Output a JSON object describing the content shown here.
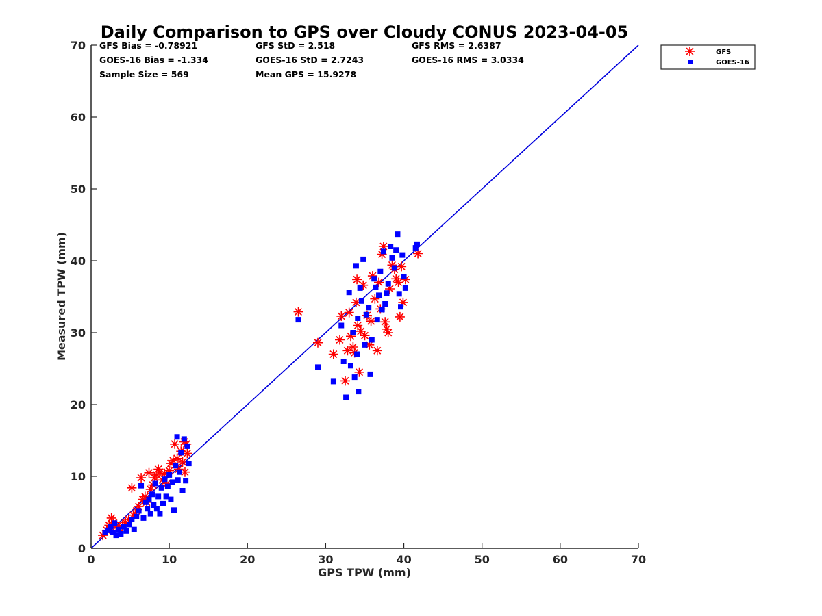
{
  "chart_data": {
    "type": "scatter",
    "title": "Daily Comparison to GPS over Cloudy CONUS 2023-04-05",
    "xlabel": "GPS TPW (mm)",
    "ylabel": "Measured TPW (mm)",
    "xlim": [
      0,
      70
    ],
    "ylim": [
      0,
      70
    ],
    "xticks": [
      0,
      10,
      20,
      30,
      40,
      50,
      60,
      70
    ],
    "yticks": [
      0,
      10,
      20,
      30,
      40,
      50,
      60,
      70
    ],
    "grid": false,
    "legend_position": "outside-top-right",
    "stats": [
      "GFS Bias = -0.78921",
      "GFS StD = 2.518",
      "GFS RMS = 2.6387",
      "GOES-16 Bias = -1.334",
      "GOES-16 StD = 2.7243",
      "GOES-16 RMS = 3.0334",
      "Sample Size = 569",
      "Mean GPS = 15.9278"
    ],
    "reference_line": {
      "x": [
        0,
        70
      ],
      "y": [
        0,
        70
      ],
      "color": "#0000dd"
    },
    "series": [
      {
        "name": "GFS",
        "marker": "asterisk",
        "color": "#ff0000",
        "points": [
          [
            1.5,
            1.8
          ],
          [
            2.0,
            2.5
          ],
          [
            2.3,
            3.2
          ],
          [
            2.6,
            4.2
          ],
          [
            2.9,
            3.6
          ],
          [
            3.2,
            3.0
          ],
          [
            3.6,
            2.8
          ],
          [
            4.0,
            3.2
          ],
          [
            4.4,
            3.6
          ],
          [
            4.8,
            4.0
          ],
          [
            5.2,
            8.4
          ],
          [
            5.4,
            4.6
          ],
          [
            5.8,
            5.2
          ],
          [
            6.1,
            5.8
          ],
          [
            6.4,
            9.8
          ],
          [
            6.6,
            6.8
          ],
          [
            6.9,
            7.2
          ],
          [
            7.1,
            6.4
          ],
          [
            7.4,
            10.5
          ],
          [
            7.6,
            8.2
          ],
          [
            7.9,
            8.8
          ],
          [
            8.1,
            9.8
          ],
          [
            8.4,
            10.2
          ],
          [
            8.6,
            11.0
          ],
          [
            8.8,
            10.6
          ],
          [
            9.1,
            9.5
          ],
          [
            9.4,
            10.4
          ],
          [
            9.7,
            9.0
          ],
          [
            10.0,
            10.8
          ],
          [
            10.2,
            11.8
          ],
          [
            10.5,
            12.2
          ],
          [
            10.7,
            14.5
          ],
          [
            11.0,
            12.5
          ],
          [
            11.2,
            11.0
          ],
          [
            11.5,
            13.5
          ],
          [
            11.7,
            12.0
          ],
          [
            11.9,
            14.8
          ],
          [
            12.0,
            10.6
          ],
          [
            12.2,
            14.5
          ],
          [
            12.3,
            13.2
          ],
          [
            26.5,
            32.9
          ],
          [
            29.0,
            28.6
          ],
          [
            31.0,
            27.0
          ],
          [
            31.8,
            29.0
          ],
          [
            32.0,
            32.3
          ],
          [
            32.5,
            23.3
          ],
          [
            32.8,
            27.5
          ],
          [
            33.0,
            32.8
          ],
          [
            33.2,
            29.5
          ],
          [
            33.5,
            28.0
          ],
          [
            33.7,
            27.2
          ],
          [
            33.9,
            34.2
          ],
          [
            34.0,
            37.4
          ],
          [
            34.1,
            31.0
          ],
          [
            34.3,
            24.5
          ],
          [
            34.5,
            30.2
          ],
          [
            34.8,
            36.6
          ],
          [
            35.0,
            29.6
          ],
          [
            35.3,
            32.4
          ],
          [
            35.6,
            28.3
          ],
          [
            35.8,
            31.6
          ],
          [
            36.0,
            37.9
          ],
          [
            36.3,
            34.7
          ],
          [
            36.6,
            27.5
          ],
          [
            36.8,
            37.0
          ],
          [
            37.0,
            33.3
          ],
          [
            37.2,
            40.9
          ],
          [
            37.4,
            42.0
          ],
          [
            37.6,
            31.5
          ],
          [
            37.8,
            30.5
          ],
          [
            38.0,
            30.0
          ],
          [
            38.2,
            36.1
          ],
          [
            38.5,
            39.4
          ],
          [
            38.8,
            38.8
          ],
          [
            39.0,
            37.5
          ],
          [
            39.3,
            37.0
          ],
          [
            39.5,
            32.2
          ],
          [
            39.7,
            39.2
          ],
          [
            39.9,
            34.2
          ],
          [
            40.2,
            37.4
          ],
          [
            41.8,
            41.0
          ]
        ]
      },
      {
        "name": "GOES-16",
        "marker": "square",
        "color": "#0000ff",
        "points": [
          [
            1.8,
            2.2
          ],
          [
            2.2,
            2.5
          ],
          [
            2.5,
            3.0
          ],
          [
            2.8,
            2.2
          ],
          [
            3.0,
            3.5
          ],
          [
            3.2,
            1.8
          ],
          [
            3.5,
            2.6
          ],
          [
            3.8,
            2.0
          ],
          [
            4.2,
            3.0
          ],
          [
            4.5,
            2.4
          ],
          [
            4.9,
            3.3
          ],
          [
            5.2,
            4.0
          ],
          [
            5.5,
            2.6
          ],
          [
            5.8,
            4.4
          ],
          [
            6.1,
            5.2
          ],
          [
            6.4,
            8.7
          ],
          [
            6.7,
            4.2
          ],
          [
            7.0,
            6.4
          ],
          [
            7.2,
            5.5
          ],
          [
            7.4,
            6.8
          ],
          [
            7.6,
            4.8
          ],
          [
            7.8,
            7.5
          ],
          [
            8.0,
            6.0
          ],
          [
            8.2,
            9.0
          ],
          [
            8.4,
            5.5
          ],
          [
            8.6,
            7.2
          ],
          [
            8.8,
            4.8
          ],
          [
            9.0,
            8.4
          ],
          [
            9.2,
            6.2
          ],
          [
            9.4,
            9.6
          ],
          [
            9.6,
            7.2
          ],
          [
            9.8,
            8.6
          ],
          [
            10.0,
            10.2
          ],
          [
            10.2,
            6.8
          ],
          [
            10.4,
            9.2
          ],
          [
            10.6,
            5.3
          ],
          [
            10.8,
            11.5
          ],
          [
            11.0,
            15.5
          ],
          [
            11.1,
            9.5
          ],
          [
            11.3,
            10.6
          ],
          [
            11.5,
            13.3
          ],
          [
            11.7,
            8.0
          ],
          [
            11.9,
            15.2
          ],
          [
            12.1,
            9.4
          ],
          [
            12.3,
            14.2
          ],
          [
            12.5,
            11.8
          ],
          [
            26.5,
            31.8
          ],
          [
            29.0,
            25.2
          ],
          [
            31.0,
            23.2
          ],
          [
            32.0,
            31.0
          ],
          [
            32.3,
            26.0
          ],
          [
            32.6,
            21.0
          ],
          [
            33.0,
            35.6
          ],
          [
            33.2,
            25.4
          ],
          [
            33.5,
            30.0
          ],
          [
            33.7,
            23.8
          ],
          [
            33.9,
            39.3
          ],
          [
            34.0,
            27.0
          ],
          [
            34.1,
            32.0
          ],
          [
            34.2,
            21.8
          ],
          [
            34.4,
            36.2
          ],
          [
            34.6,
            34.4
          ],
          [
            34.8,
            40.2
          ],
          [
            35.0,
            28.3
          ],
          [
            35.2,
            32.5
          ],
          [
            35.5,
            33.5
          ],
          [
            35.7,
            24.2
          ],
          [
            35.9,
            29.0
          ],
          [
            36.2,
            37.5
          ],
          [
            36.4,
            36.3
          ],
          [
            36.6,
            31.8
          ],
          [
            36.8,
            35.2
          ],
          [
            37.0,
            38.5
          ],
          [
            37.2,
            33.2
          ],
          [
            37.4,
            41.3
          ],
          [
            37.6,
            34.0
          ],
          [
            37.8,
            35.5
          ],
          [
            38.0,
            36.8
          ],
          [
            38.3,
            42.0
          ],
          [
            38.5,
            40.4
          ],
          [
            38.8,
            39.0
          ],
          [
            39.0,
            41.5
          ],
          [
            39.2,
            43.7
          ],
          [
            39.4,
            35.4
          ],
          [
            39.6,
            33.6
          ],
          [
            39.8,
            40.8
          ],
          [
            40.0,
            37.8
          ],
          [
            40.2,
            36.2
          ],
          [
            41.5,
            41.8
          ],
          [
            41.7,
            42.3
          ]
        ]
      }
    ]
  }
}
